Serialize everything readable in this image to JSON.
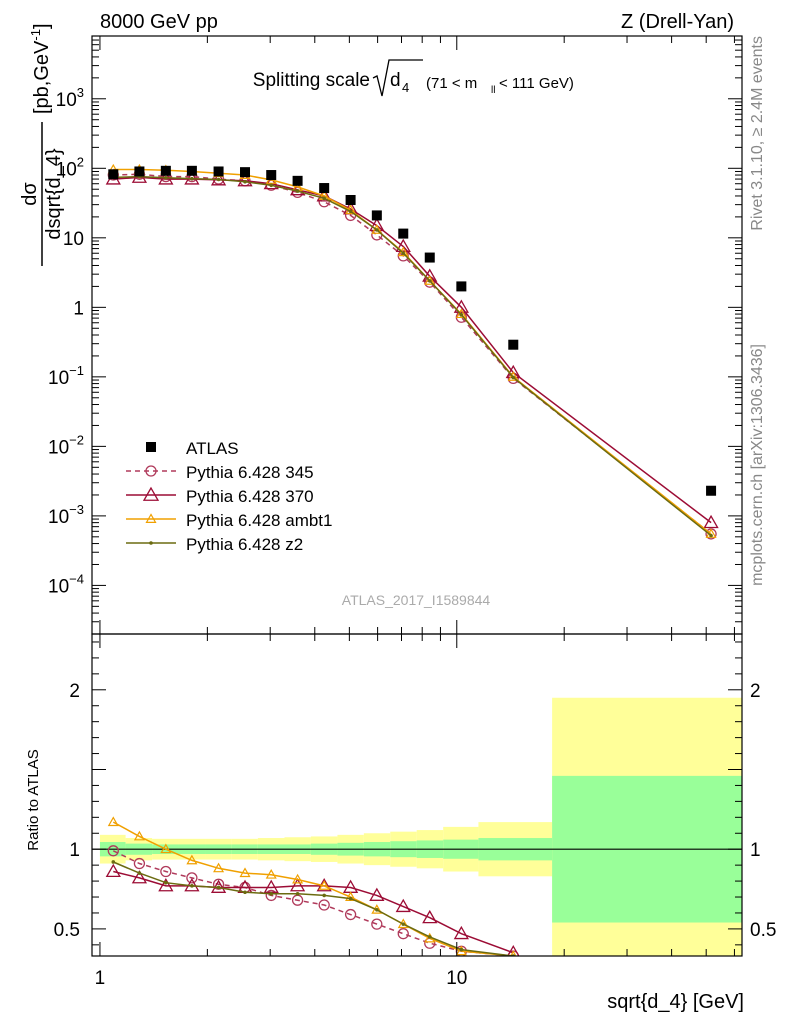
{
  "header": {
    "left": "8000 GeV pp",
    "right": "Z (Drell-Yan)"
  },
  "side_labels": {
    "version": "Rivet 3.1.10, ≥ 2.4M events",
    "source": "mcplots.cern.ch [arXiv:1306.3436]"
  },
  "watermark": "ATLAS_2017_I1589844",
  "chart_data": [
    {
      "type": "scatter",
      "panel": "main",
      "title_main": "Splitting scale",
      "title_sqrt_arg": "d",
      "title_sqrt_sub": "4",
      "title_range_pre": "(71 < m",
      "title_range_sub": "ll",
      "title_range_post": " < 111 GeV)",
      "ylabel_num": "dσ",
      "ylabel_den": "dsqrt{d_4}",
      "ylabel_unit": "[pb,GeV",
      "ylabel_unit_sup": "-1",
      "ylabel_unit_close": "]",
      "xscale": "log",
      "yscale": "log",
      "xlim": [
        0.95,
        63
      ],
      "ylim": [
        2e-05,
        8000
      ],
      "x_tick_labels": [
        "1",
        "10"
      ],
      "y_tick_labels": [
        {
          "base": "10",
          "exp": "3",
          "value": 1000
        },
        {
          "base": "10",
          "exp": "2",
          "value": 100
        },
        {
          "base": "10",
          "exp": "",
          "value": 10
        },
        {
          "base": "1",
          "exp": "",
          "value": 1
        },
        {
          "base": "10",
          "exp": "−1",
          "value": 0.1
        },
        {
          "base": "10",
          "exp": "−2",
          "value": 0.01
        },
        {
          "base": "10",
          "exp": "−3",
          "value": 0.001
        },
        {
          "base": "10",
          "exp": "−4",
          "value": 0.0001
        }
      ],
      "legend_position": "lower-left",
      "x": [
        1.09,
        1.29,
        1.53,
        1.81,
        2.15,
        2.55,
        3.02,
        3.58,
        4.25,
        5.04,
        5.97,
        7.08,
        8.4,
        10.3,
        14.4,
        51.6
      ],
      "series": [
        {
          "name": "ATLAS",
          "style": "data",
          "color": "#000000",
          "values": [
            82,
            90,
            92,
            92,
            90,
            88,
            80,
            66,
            52,
            35,
            21,
            11.5,
            5.2,
            2.0,
            0.29,
            0.0023
          ]
        },
        {
          "name": "Pythia 6.428 345",
          "style": "circle-dashed",
          "color": "#b03a5b",
          "values": [
            80,
            82,
            76,
            76,
            70,
            66,
            57,
            45,
            33,
            21,
            11,
            5.5,
            2.3,
            0.72,
            0.095,
            0.00055
          ]
        },
        {
          "name": "Pythia 6.428 370",
          "style": "triangle-solid",
          "color": "#9c0c35",
          "values": [
            70,
            74,
            70,
            70,
            68,
            66,
            60,
            49,
            40,
            26,
            15,
            7.5,
            2.8,
            1.0,
            0.115,
            0.0008
          ]
        },
        {
          "name": "Pythia 6.428 ambt1",
          "style": "triangle-small",
          "color": "#f0a000",
          "values": [
            96,
            96,
            94,
            90,
            85,
            80,
            68,
            54,
            40,
            25,
            13,
            6.2,
            2.4,
            0.8,
            0.1,
            0.00055
          ]
        },
        {
          "name": "Pythia 6.428 z2",
          "style": "dot",
          "color": "#6b6b10",
          "values": [
            74,
            76,
            73,
            71,
            69,
            64,
            57,
            47,
            37,
            24,
            13,
            6.0,
            2.4,
            0.78,
            0.098,
            0.00052
          ]
        }
      ]
    },
    {
      "type": "line",
      "panel": "ratio",
      "ylabel": "Ratio to ATLAS",
      "xlabel": "sqrt{d_4} [GeV]",
      "xscale": "log",
      "xlim": [
        0.95,
        63
      ],
      "ylim": [
        0.33,
        2.35
      ],
      "y_tick_labels": [
        "2",
        "1",
        "0.5"
      ],
      "band_edges": [
        1.0,
        1.18,
        1.4,
        1.66,
        1.97,
        2.34,
        2.77,
        3.29,
        3.9,
        4.63,
        5.49,
        6.51,
        7.72,
        9.16,
        11.5,
        18.5,
        63
      ],
      "band_inner": [
        0.045,
        0.035,
        0.03,
        0.03,
        0.03,
        0.03,
        0.03,
        0.03,
        0.035,
        0.04,
        0.045,
        0.05,
        0.055,
        0.06,
        0.07,
        0.46
      ],
      "band_outer": [
        0.09,
        0.07,
        0.065,
        0.065,
        0.065,
        0.065,
        0.07,
        0.075,
        0.08,
        0.09,
        0.1,
        0.11,
        0.12,
        0.14,
        0.17,
        0.95
      ],
      "band_colors": {
        "inner": "#99ff99",
        "outer": "#ffff99"
      },
      "x": [
        1.09,
        1.29,
        1.53,
        1.81,
        2.15,
        2.55,
        3.02,
        3.58,
        4.25,
        5.04,
        5.97,
        7.08,
        8.4,
        10.3,
        14.4
      ],
      "series": [
        {
          "name": "Pythia 6.428 345",
          "style": "circle-dashed",
          "color": "#b03a5b",
          "values": [
            0.99,
            0.91,
            0.86,
            0.82,
            0.78,
            0.76,
            0.71,
            0.68,
            0.65,
            0.59,
            0.53,
            0.47,
            0.41,
            0.36,
            0.33
          ]
        },
        {
          "name": "Pythia 6.428 370",
          "style": "triangle-solid",
          "color": "#9c0c35",
          "values": [
            0.86,
            0.82,
            0.77,
            0.77,
            0.76,
            0.76,
            0.76,
            0.77,
            0.77,
            0.76,
            0.71,
            0.64,
            0.57,
            0.47,
            0.35
          ]
        },
        {
          "name": "Pythia 6.428 ambt1",
          "style": "triangle-small",
          "color": "#f0a000",
          "values": [
            1.17,
            1.08,
            1.0,
            0.93,
            0.88,
            0.85,
            0.84,
            0.81,
            0.77,
            0.7,
            0.62,
            0.53,
            0.44,
            0.36,
            0.33
          ]
        },
        {
          "name": "Pythia 6.428 z2",
          "style": "dot",
          "color": "#6b6b10",
          "values": [
            0.92,
            0.85,
            0.79,
            0.77,
            0.76,
            0.73,
            0.72,
            0.72,
            0.71,
            0.69,
            0.62,
            0.53,
            0.45,
            0.37,
            0.33
          ]
        }
      ]
    }
  ]
}
